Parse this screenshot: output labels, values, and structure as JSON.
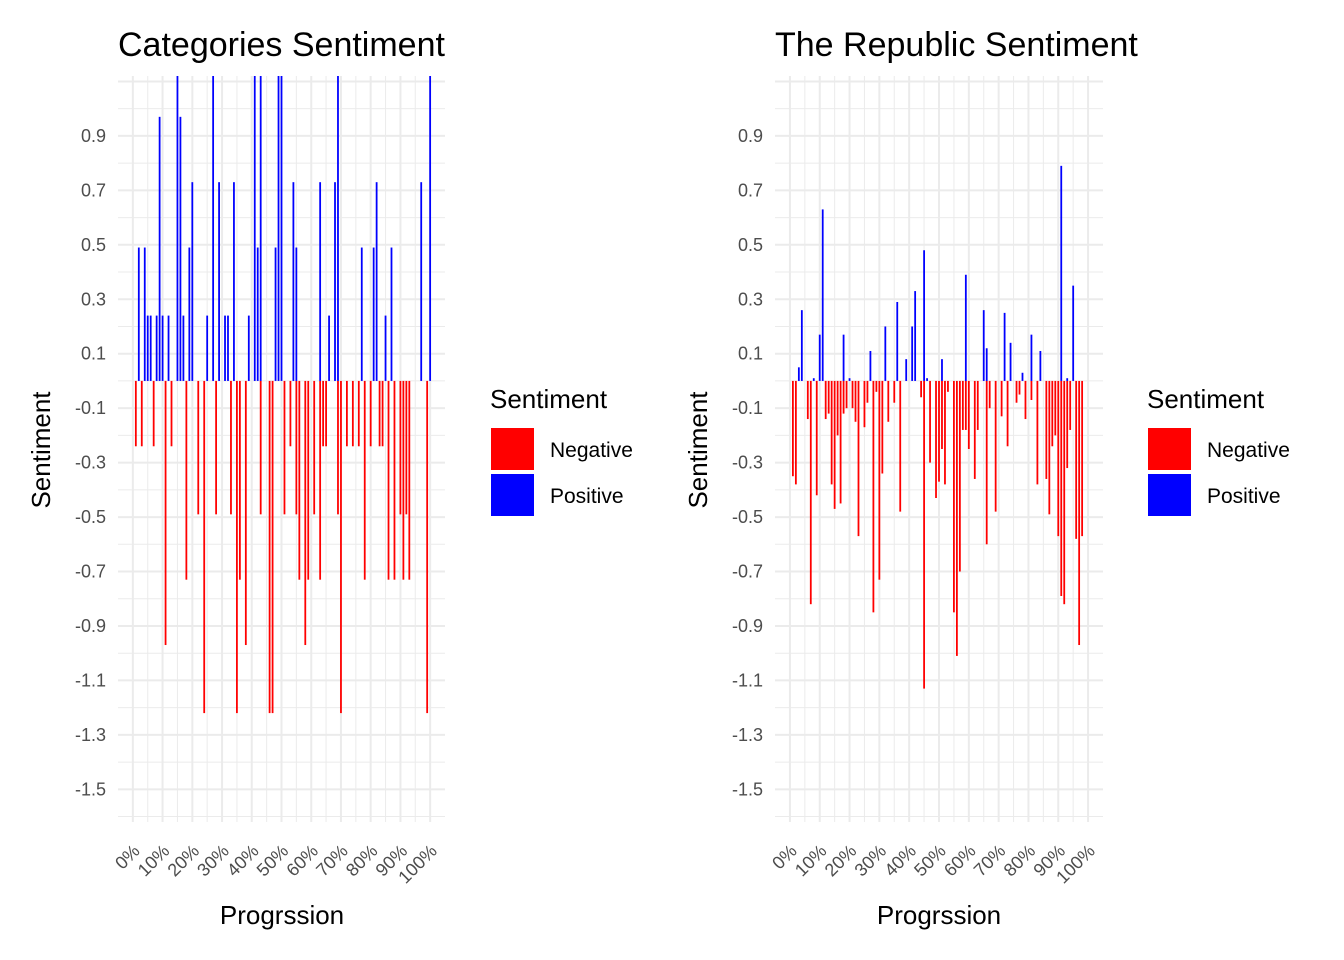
{
  "chart_data": [
    {
      "type": "bar",
      "title": "Categories Sentiment",
      "xlabel": "Progrssion",
      "ylabel": "Sentiment",
      "x_tick_labels": [
        "0%",
        "10%",
        "20%",
        "30%",
        "40%",
        "50%",
        "60%",
        "70%",
        "80%",
        "90%",
        "100%"
      ],
      "y_tick_labels": [
        "0.9",
        "0.7",
        "0.5",
        "0.3",
        "0.1",
        "-0.1",
        "-0.3",
        "-0.5",
        "-0.7",
        "-0.9",
        "-1.1",
        "-1.3",
        "-1.5"
      ],
      "xlim": [
        -0.05,
        1.05
      ],
      "ylim": [
        -1.62,
        1.12
      ],
      "grid": true,
      "legend": {
        "title": "Sentiment",
        "position": "right",
        "entries": [
          {
            "label": "Negative",
            "color": "#ff0000"
          },
          {
            "label": "Positive",
            "color": "#0000ff"
          }
        ]
      },
      "series": [
        {
          "name": "Negative",
          "color": "#ff0000",
          "x": [
            0.01,
            0.03,
            0.07,
            0.11,
            0.13,
            0.18,
            0.22,
            0.24,
            0.28,
            0.33,
            0.35,
            0.36,
            0.38,
            0.43,
            0.46,
            0.47,
            0.51,
            0.53,
            0.55,
            0.56,
            0.58,
            0.59,
            0.61,
            0.63,
            0.64,
            0.65,
            0.69,
            0.7,
            0.72,
            0.74,
            0.76,
            0.78,
            0.8,
            0.83,
            0.84,
            0.86,
            0.88,
            0.9,
            0.91,
            0.92,
            0.93,
            0.99
          ],
          "y": [
            -0.24,
            -0.24,
            -0.24,
            -0.97,
            -0.24,
            -0.73,
            -0.49,
            -1.22,
            -0.49,
            -0.49,
            -1.22,
            -0.73,
            -0.97,
            -0.49,
            -1.22,
            -1.22,
            -0.49,
            -0.24,
            -0.49,
            -0.73,
            -0.97,
            -0.73,
            -0.49,
            -0.73,
            -0.24,
            -0.24,
            -0.49,
            -1.22,
            -0.24,
            -0.24,
            -0.24,
            -0.73,
            -0.24,
            -0.24,
            -0.24,
            -0.73,
            -0.73,
            -0.49,
            -0.73,
            -0.49,
            -0.73,
            -1.22
          ]
        },
        {
          "name": "Positive",
          "color": "#0000ff",
          "x": [
            0.02,
            0.04,
            0.05,
            0.06,
            0.08,
            0.09,
            0.1,
            0.12,
            0.15,
            0.16,
            0.17,
            0.19,
            0.2,
            0.25,
            0.27,
            0.29,
            0.31,
            0.32,
            0.34,
            0.39,
            0.41,
            0.42,
            0.43,
            0.48,
            0.49,
            0.5,
            0.54,
            0.55,
            0.63,
            0.66,
            0.68,
            0.69,
            0.77,
            0.81,
            0.82,
            0.85,
            0.87,
            0.97,
            1.0
          ],
          "y": [
            0.49,
            0.49,
            0.24,
            0.24,
            0.24,
            0.97,
            0.24,
            0.24,
            1.12,
            0.97,
            0.24,
            0.49,
            0.73,
            0.24,
            1.12,
            0.73,
            0.24,
            0.24,
            0.73,
            0.24,
            1.12,
            0.49,
            1.12,
            0.49,
            1.12,
            1.12,
            0.73,
            0.49,
            0.73,
            0.24,
            0.73,
            1.12,
            0.49,
            0.49,
            0.73,
            0.24,
            0.49,
            0.73,
            1.12
          ]
        }
      ]
    },
    {
      "type": "bar",
      "title": "The Republic Sentiment",
      "xlabel": "Progrssion",
      "ylabel": "Sentiment",
      "x_tick_labels": [
        "0%",
        "10%",
        "20%",
        "30%",
        "40%",
        "50%",
        "60%",
        "70%",
        "80%",
        "90%",
        "100%"
      ],
      "y_tick_labels": [
        "0.9",
        "0.7",
        "0.5",
        "0.3",
        "0.1",
        "-0.1",
        "-0.3",
        "-0.5",
        "-0.7",
        "-0.9",
        "-1.1",
        "-1.3",
        "-1.5"
      ],
      "xlim": [
        -0.05,
        1.05
      ],
      "ylim": [
        -1.62,
        1.12
      ],
      "grid": true,
      "legend": {
        "title": "Sentiment",
        "position": "right",
        "entries": [
          {
            "label": "Negative",
            "color": "#ff0000"
          },
          {
            "label": "Positive",
            "color": "#0000ff"
          }
        ]
      },
      "series": [
        {
          "name": "Negative",
          "color": "#ff0000",
          "x": [
            0.01,
            0.02,
            0.06,
            0.07,
            0.09,
            0.12,
            0.13,
            0.14,
            0.15,
            0.16,
            0.17,
            0.18,
            0.19,
            0.21,
            0.22,
            0.23,
            0.25,
            0.26,
            0.28,
            0.29,
            0.3,
            0.31,
            0.33,
            0.35,
            0.37,
            0.44,
            0.45,
            0.47,
            0.49,
            0.5,
            0.51,
            0.52,
            0.53,
            0.55,
            0.56,
            0.57,
            0.58,
            0.59,
            0.6,
            0.62,
            0.63,
            0.66,
            0.67,
            0.69,
            0.71,
            0.73,
            0.76,
            0.77,
            0.79,
            0.81,
            0.83,
            0.86,
            0.87,
            0.88,
            0.89,
            0.9,
            0.91,
            0.92,
            0.93,
            0.94,
            0.96,
            0.97,
            0.98
          ],
          "y": [
            -0.35,
            -0.38,
            -0.14,
            -0.82,
            -0.42,
            -0.14,
            -0.12,
            -0.38,
            -0.47,
            -0.2,
            -0.45,
            -0.12,
            -0.1,
            -0.1,
            -0.15,
            -0.57,
            -0.17,
            -0.08,
            -0.85,
            -0.04,
            -0.73,
            -0.34,
            -0.15,
            -0.08,
            -0.48,
            -0.06,
            -1.13,
            -0.3,
            -0.43,
            -0.37,
            -0.25,
            -0.38,
            -0.04,
            -0.85,
            -1.01,
            -0.7,
            -0.18,
            -0.18,
            -0.25,
            -0.36,
            -0.18,
            -0.6,
            -0.1,
            -0.48,
            -0.13,
            -0.24,
            -0.08,
            -0.05,
            -0.14,
            -0.07,
            -0.38,
            -0.36,
            -0.49,
            -0.24,
            -0.2,
            -0.57,
            -0.79,
            -0.82,
            -0.32,
            -0.18,
            -0.58,
            -0.97,
            -0.57
          ]
        },
        {
          "name": "Positive",
          "color": "#0000ff",
          "x": [
            0.03,
            0.04,
            0.08,
            0.1,
            0.11,
            0.18,
            0.2,
            0.27,
            0.32,
            0.36,
            0.39,
            0.41,
            0.42,
            0.45,
            0.46,
            0.51,
            0.59,
            0.65,
            0.66,
            0.72,
            0.74,
            0.78,
            0.81,
            0.84,
            0.91,
            0.93,
            0.95
          ],
          "y": [
            0.05,
            0.26,
            0.01,
            0.17,
            0.63,
            0.17,
            0.01,
            0.11,
            0.2,
            0.29,
            0.08,
            0.2,
            0.33,
            0.48,
            0.01,
            0.08,
            0.39,
            0.26,
            0.12,
            0.25,
            0.14,
            0.03,
            0.17,
            0.11,
            0.79,
            0.01,
            0.35
          ]
        }
      ]
    }
  ]
}
